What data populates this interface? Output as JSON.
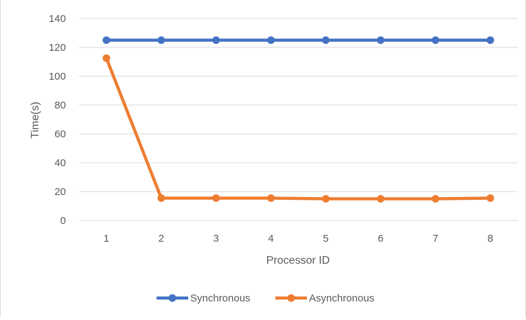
{
  "chart_data": {
    "type": "line",
    "title": "",
    "xlabel": "Processor ID",
    "ylabel": "Time(s)",
    "categories": [
      "1",
      "2",
      "3",
      "4",
      "5",
      "6",
      "7",
      "8"
    ],
    "ylim": [
      0,
      140
    ],
    "yticks": [
      "0",
      "20",
      "40",
      "60",
      "80",
      "100",
      "120",
      "140"
    ],
    "grid": "horizontal",
    "legend_position": "bottom",
    "series": [
      {
        "name": "Synchronous",
        "color": "#4472c4",
        "values": [
          125,
          125,
          125,
          125,
          125,
          125,
          125,
          125
        ]
      },
      {
        "name": "Asynchronous",
        "color": "#ed7d31",
        "values": [
          112.5,
          15.5,
          15.5,
          15.5,
          15,
          15,
          15,
          15.5
        ]
      }
    ]
  }
}
